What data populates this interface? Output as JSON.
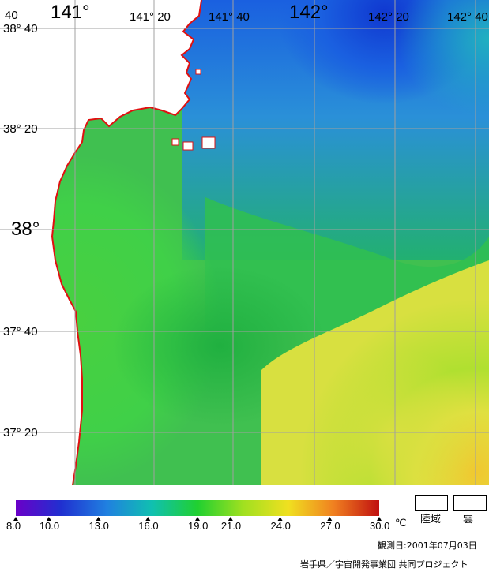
{
  "map": {
    "latitude_labels": [
      "38° 40",
      "38° 20",
      "38°",
      "37° 40",
      "37° 20"
    ],
    "longitude_labels": [
      "141°",
      "141° 20",
      "141° 40",
      "142°",
      "142° 20",
      "142° 40"
    ],
    "corner_label": "40"
  },
  "colorbar": {
    "ticks": [
      "8.0",
      "10.0",
      "13.0",
      "16.0",
      "19.0",
      "21.0",
      "24.0",
      "27.0",
      "30.0"
    ],
    "tick_values": [
      8,
      10,
      13,
      16,
      19,
      21,
      24,
      27,
      30
    ],
    "unit": "℃",
    "colors": [
      "#6a00c8",
      "#2030d0",
      "#2080e0",
      "#10c0b0",
      "#20d030",
      "#a0e020",
      "#f0e020",
      "#f08020",
      "#c01010"
    ]
  },
  "legend": {
    "land": "陸域",
    "cloud": "雲"
  },
  "meta": {
    "observation_date": "観測日:2001年07月03日",
    "credit": "岩手県／宇宙開発事業団 共同プロジェクト"
  },
  "colors": {
    "coastline": "#e01010",
    "grid": "#a0a0a0"
  }
}
